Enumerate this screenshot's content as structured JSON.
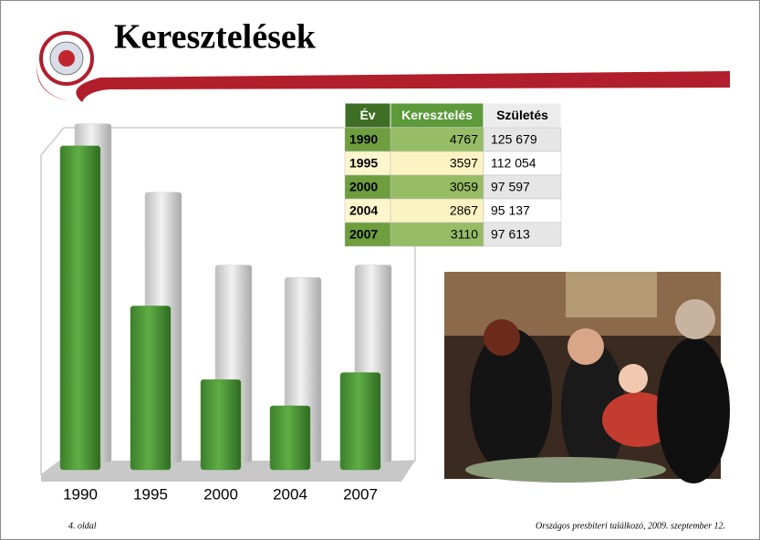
{
  "title": "Keresztelések",
  "chart_data": {
    "type": "bar",
    "categories": [
      "1990",
      "1995",
      "2000",
      "2004",
      "2007"
    ],
    "series": [
      {
        "color": "#c9c9c9",
        "values": [
          125679,
          112054,
          97597,
          95137,
          97613
        ],
        "axis": "y2"
      },
      {
        "color": "#4f9a3a",
        "values": [
          4767,
          3597,
          3059,
          2867,
          3110
        ]
      }
    ],
    "ylim": [
      2400,
      4900
    ],
    "y2lim": [
      58000,
      126000
    ]
  },
  "table": {
    "header": [
      "Év",
      "Keresztelés",
      "Születés"
    ],
    "rows": [
      [
        "1990",
        "4767",
        "125 679"
      ],
      [
        "1995",
        "3597",
        "112 054"
      ],
      [
        "2000",
        "3059",
        "97 597"
      ],
      [
        "2004",
        "2867",
        "95 137"
      ],
      [
        "2007",
        "3110",
        "97 613"
      ]
    ]
  },
  "footer": {
    "page": "4. oldal",
    "event": "Országos presbiteri találkozó, 2009. szeptember 12."
  }
}
